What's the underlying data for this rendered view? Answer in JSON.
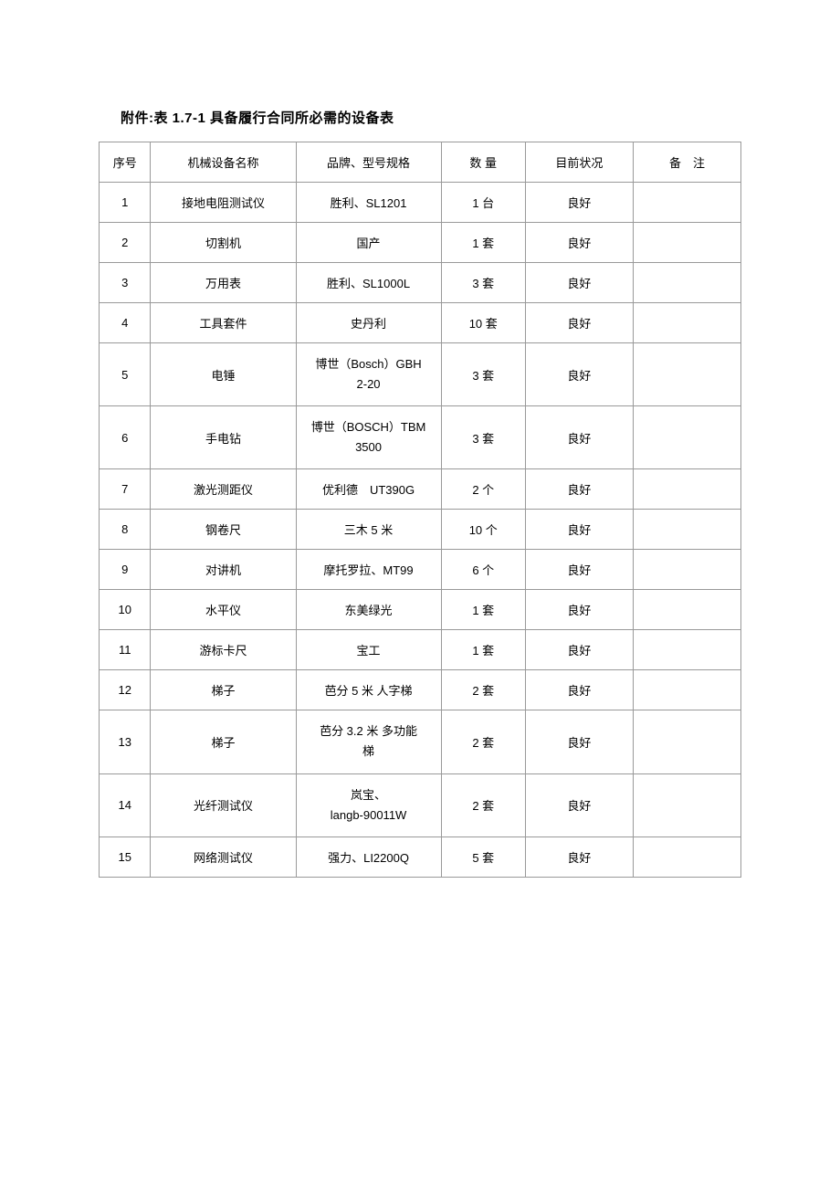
{
  "title": "附件:表 1.7-1 具备履行合同所必需的设备表",
  "table": {
    "columns": [
      "序号",
      "机械设备名称",
      "品牌、型号规格",
      "数 量",
      "目前状况",
      "备　注"
    ],
    "rows": [
      {
        "seq": "1",
        "name": "接地电阻测试仪",
        "spec": "胜利、SL1201",
        "qty": "1 台",
        "status": "良好",
        "note": ""
      },
      {
        "seq": "2",
        "name": "切割机",
        "spec": "国产",
        "qty": "1 套",
        "status": "良好",
        "note": ""
      },
      {
        "seq": "3",
        "name": "万用表",
        "spec": "胜利、SL1000L",
        "qty": "3 套",
        "status": "良好",
        "note": ""
      },
      {
        "seq": "4",
        "name": "工具套件",
        "spec": "史丹利",
        "qty": "10 套",
        "status": "良好",
        "note": ""
      },
      {
        "seq": "5",
        "name": "电锤",
        "spec": "博世（Bosch）GBH\n2-20",
        "qty": "3 套",
        "status": "良好",
        "note": ""
      },
      {
        "seq": "6",
        "name": "手电钻",
        "spec": "博世（BOSCH）TBM\n3500",
        "qty": "3 套",
        "status": "良好",
        "note": ""
      },
      {
        "seq": "7",
        "name": "激光测距仪",
        "spec": "优利德　UT390G",
        "qty": "2 个",
        "status": "良好",
        "note": ""
      },
      {
        "seq": "8",
        "name": "钢卷尺",
        "spec": "三木 5 米",
        "qty": "10 个",
        "status": "良好",
        "note": ""
      },
      {
        "seq": "9",
        "name": "对讲机",
        "spec": "摩托罗拉、MT99",
        "qty": "6 个",
        "status": "良好",
        "note": ""
      },
      {
        "seq": "10",
        "name": "水平仪",
        "spec": "东美绿光",
        "qty": "1 套",
        "status": "良好",
        "note": ""
      },
      {
        "seq": "11",
        "name": "游标卡尺",
        "spec": "宝工",
        "qty": "1 套",
        "status": "良好",
        "note": ""
      },
      {
        "seq": "12",
        "name": "梯子",
        "spec": "芭分 5 米 人字梯",
        "qty": "2 套",
        "status": "良好",
        "note": ""
      },
      {
        "seq": "13",
        "name": "梯子",
        "spec": "芭分 3.2 米 多功能\n梯",
        "qty": "2 套",
        "status": "良好",
        "note": ""
      },
      {
        "seq": "14",
        "name": "光纤测试仪",
        "spec": "岚宝、\nlangb-90011W",
        "qty": "2 套",
        "status": "良好",
        "note": ""
      },
      {
        "seq": "15",
        "name": "网络测试仪",
        "spec": "强力、LI2200Q",
        "qty": "5 套",
        "status": "良好",
        "note": ""
      }
    ]
  }
}
